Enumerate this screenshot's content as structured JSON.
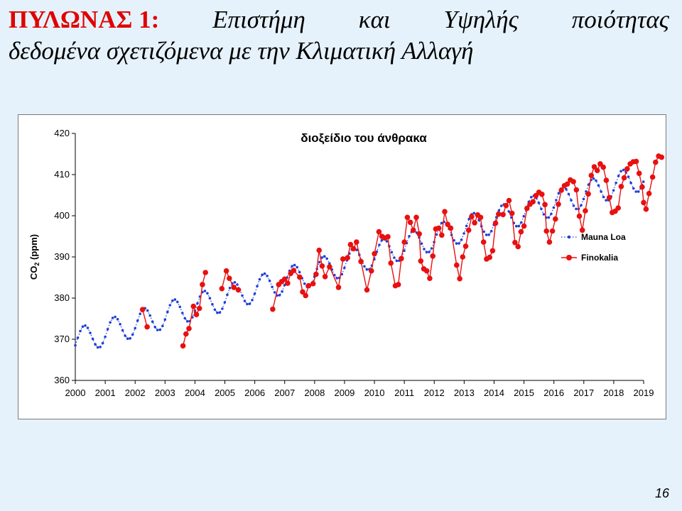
{
  "slide": {
    "title_red": "ΠΥΛΩΝΑΣ 1",
    "title_colon": ":",
    "title_words_line1": [
      "Επιστήμη",
      "και",
      "Υψηλής",
      "ποιότητας"
    ],
    "title_line2": "δεδομένα σχετιζόμενα με την Κλιματική Αλλαγή",
    "page_number": "16"
  },
  "colors": {
    "mauna_loa": "#1f3fd6",
    "finokalia": "#e81010",
    "title_red": "#e00000"
  },
  "chart_data": {
    "type": "line",
    "title": "διοξείδιο του άνθρακα",
    "ylabel_main": "CO",
    "ylabel_sub": "2",
    "ylabel_unit": " (ppm)",
    "xlim": [
      2000,
      2019
    ],
    "ylim": [
      360,
      420
    ],
    "x_ticks": [
      "2000",
      "2001",
      "2002",
      "2003",
      "2004",
      "2005",
      "2006",
      "2007",
      "2008",
      "2009",
      "2010",
      "2011",
      "2012",
      "2013",
      "2014",
      "2015",
      "2016",
      "2017",
      "2018",
      "2019"
    ],
    "y_ticks": [
      "360",
      "370",
      "380",
      "390",
      "400",
      "410",
      "420"
    ],
    "legend_position": "right",
    "grid": false,
    "series": [
      {
        "name": "Mauna Loa",
        "marker": "small-dot",
        "model": {
          "start": 2000.0,
          "end": 2019.0,
          "step": 0.0833,
          "base": 369.5,
          "trend": 2.1,
          "curve": 0.0016,
          "amp": 3.2,
          "phase": 0.3
        }
      },
      {
        "name": "Finokalia",
        "marker": "large-dot",
        "points": [
          [
            2002.25,
            377.2
          ],
          [
            2002.4,
            373.0
          ],
          [
            2003.6,
            368.4
          ],
          [
            2003.7,
            371.3
          ],
          [
            2003.8,
            372.6
          ],
          [
            2003.95,
            378.0
          ],
          [
            2004.05,
            376.0
          ],
          [
            2004.15,
            377.5
          ],
          [
            2004.25,
            383.3
          ],
          [
            2004.35,
            386.2
          ],
          [
            2004.9,
            382.3
          ],
          [
            2005.05,
            386.6
          ],
          [
            2005.15,
            384.8
          ],
          [
            2005.3,
            382.6
          ],
          [
            2005.45,
            382.0
          ],
          [
            2006.6,
            377.3
          ],
          [
            2006.8,
            383.3
          ],
          [
            2006.9,
            384.0
          ],
          [
            2007.0,
            384.6
          ],
          [
            2007.1,
            383.6
          ],
          [
            2007.2,
            386.0
          ],
          [
            2007.3,
            386.7
          ],
          [
            2007.5,
            385.1
          ],
          [
            2007.6,
            381.5
          ],
          [
            2007.7,
            380.6
          ],
          [
            2007.8,
            383.0
          ],
          [
            2007.95,
            383.5
          ],
          [
            2008.05,
            385.8
          ],
          [
            2008.15,
            391.6
          ],
          [
            2008.25,
            387.8
          ],
          [
            2008.35,
            385.2
          ],
          [
            2008.5,
            387.6
          ],
          [
            2008.8,
            382.6
          ],
          [
            2008.95,
            389.5
          ],
          [
            2009.1,
            389.8
          ],
          [
            2009.2,
            393.0
          ],
          [
            2009.3,
            392.0
          ],
          [
            2009.4,
            393.6
          ],
          [
            2009.55,
            388.9
          ],
          [
            2009.75,
            382.0
          ],
          [
            2009.9,
            386.6
          ],
          [
            2010.0,
            390.8
          ],
          [
            2010.15,
            396.1
          ],
          [
            2010.25,
            395.0
          ],
          [
            2010.35,
            394.6
          ],
          [
            2010.45,
            394.9
          ],
          [
            2010.55,
            388.5
          ],
          [
            2010.7,
            383.0
          ],
          [
            2010.8,
            383.3
          ],
          [
            2010.9,
            389.6
          ],
          [
            2011.0,
            393.6
          ],
          [
            2011.1,
            399.6
          ],
          [
            2011.2,
            398.4
          ],
          [
            2011.3,
            396.5
          ],
          [
            2011.4,
            399.6
          ],
          [
            2011.5,
            395.6
          ],
          [
            2011.55,
            389.0
          ],
          [
            2011.65,
            387.1
          ],
          [
            2011.75,
            386.6
          ],
          [
            2011.85,
            384.8
          ],
          [
            2011.95,
            390.2
          ],
          [
            2012.05,
            396.8
          ],
          [
            2012.15,
            397.0
          ],
          [
            2012.25,
            395.3
          ],
          [
            2012.35,
            401.0
          ],
          [
            2012.45,
            397.9
          ],
          [
            2012.55,
            397.0
          ],
          [
            2012.75,
            388.0
          ],
          [
            2012.85,
            384.7
          ],
          [
            2012.95,
            390.0
          ],
          [
            2013.05,
            392.6
          ],
          [
            2013.15,
            396.5
          ],
          [
            2013.25,
            399.8
          ],
          [
            2013.35,
            398.3
          ],
          [
            2013.45,
            400.2
          ],
          [
            2013.55,
            399.6
          ],
          [
            2013.65,
            393.6
          ],
          [
            2013.75,
            389.5
          ],
          [
            2013.85,
            389.9
          ],
          [
            2013.95,
            391.5
          ],
          [
            2014.05,
            398.2
          ],
          [
            2014.15,
            400.4
          ],
          [
            2014.3,
            400.3
          ],
          [
            2014.4,
            402.5
          ],
          [
            2014.5,
            403.7
          ],
          [
            2014.6,
            400.6
          ],
          [
            2014.7,
            393.5
          ],
          [
            2014.8,
            392.5
          ],
          [
            2014.9,
            396.1
          ],
          [
            2015.0,
            397.5
          ],
          [
            2015.1,
            401.8
          ],
          [
            2015.2,
            402.8
          ],
          [
            2015.3,
            403.4
          ],
          [
            2015.4,
            404.9
          ],
          [
            2015.5,
            405.7
          ],
          [
            2015.6,
            405.2
          ],
          [
            2015.7,
            402.7
          ],
          [
            2015.75,
            396.3
          ],
          [
            2015.85,
            393.6
          ],
          [
            2015.95,
            396.3
          ],
          [
            2016.05,
            399.2
          ],
          [
            2016.15,
            402.8
          ],
          [
            2016.25,
            406.2
          ],
          [
            2016.35,
            407.3
          ],
          [
            2016.45,
            407.7
          ],
          [
            2016.55,
            408.7
          ],
          [
            2016.65,
            408.3
          ],
          [
            2016.75,
            406.3
          ],
          [
            2016.85,
            399.9
          ],
          [
            2016.95,
            396.5
          ],
          [
            2017.05,
            401.2
          ],
          [
            2017.15,
            405.3
          ],
          [
            2017.25,
            409.8
          ],
          [
            2017.35,
            411.9
          ],
          [
            2017.45,
            411.0
          ],
          [
            2017.55,
            412.6
          ],
          [
            2017.65,
            411.8
          ],
          [
            2017.75,
            408.6
          ],
          [
            2017.85,
            404.4
          ],
          [
            2017.95,
            400.8
          ],
          [
            2018.05,
            401.1
          ],
          [
            2018.15,
            401.9
          ],
          [
            2018.25,
            407.1
          ],
          [
            2018.35,
            409.2
          ],
          [
            2018.45,
            411.4
          ],
          [
            2018.55,
            412.6
          ],
          [
            2018.65,
            413.1
          ],
          [
            2018.75,
            413.2
          ],
          [
            2018.85,
            410.3
          ],
          [
            2018.95,
            407.0
          ],
          [
            2019.0,
            403.2
          ],
          [
            2019.08,
            401.6
          ],
          [
            2019.18,
            405.4
          ],
          [
            2019.3,
            409.4
          ],
          [
            2019.4,
            413.0
          ],
          [
            2019.5,
            414.5
          ],
          [
            2019.6,
            414.2
          ]
        ]
      }
    ]
  }
}
